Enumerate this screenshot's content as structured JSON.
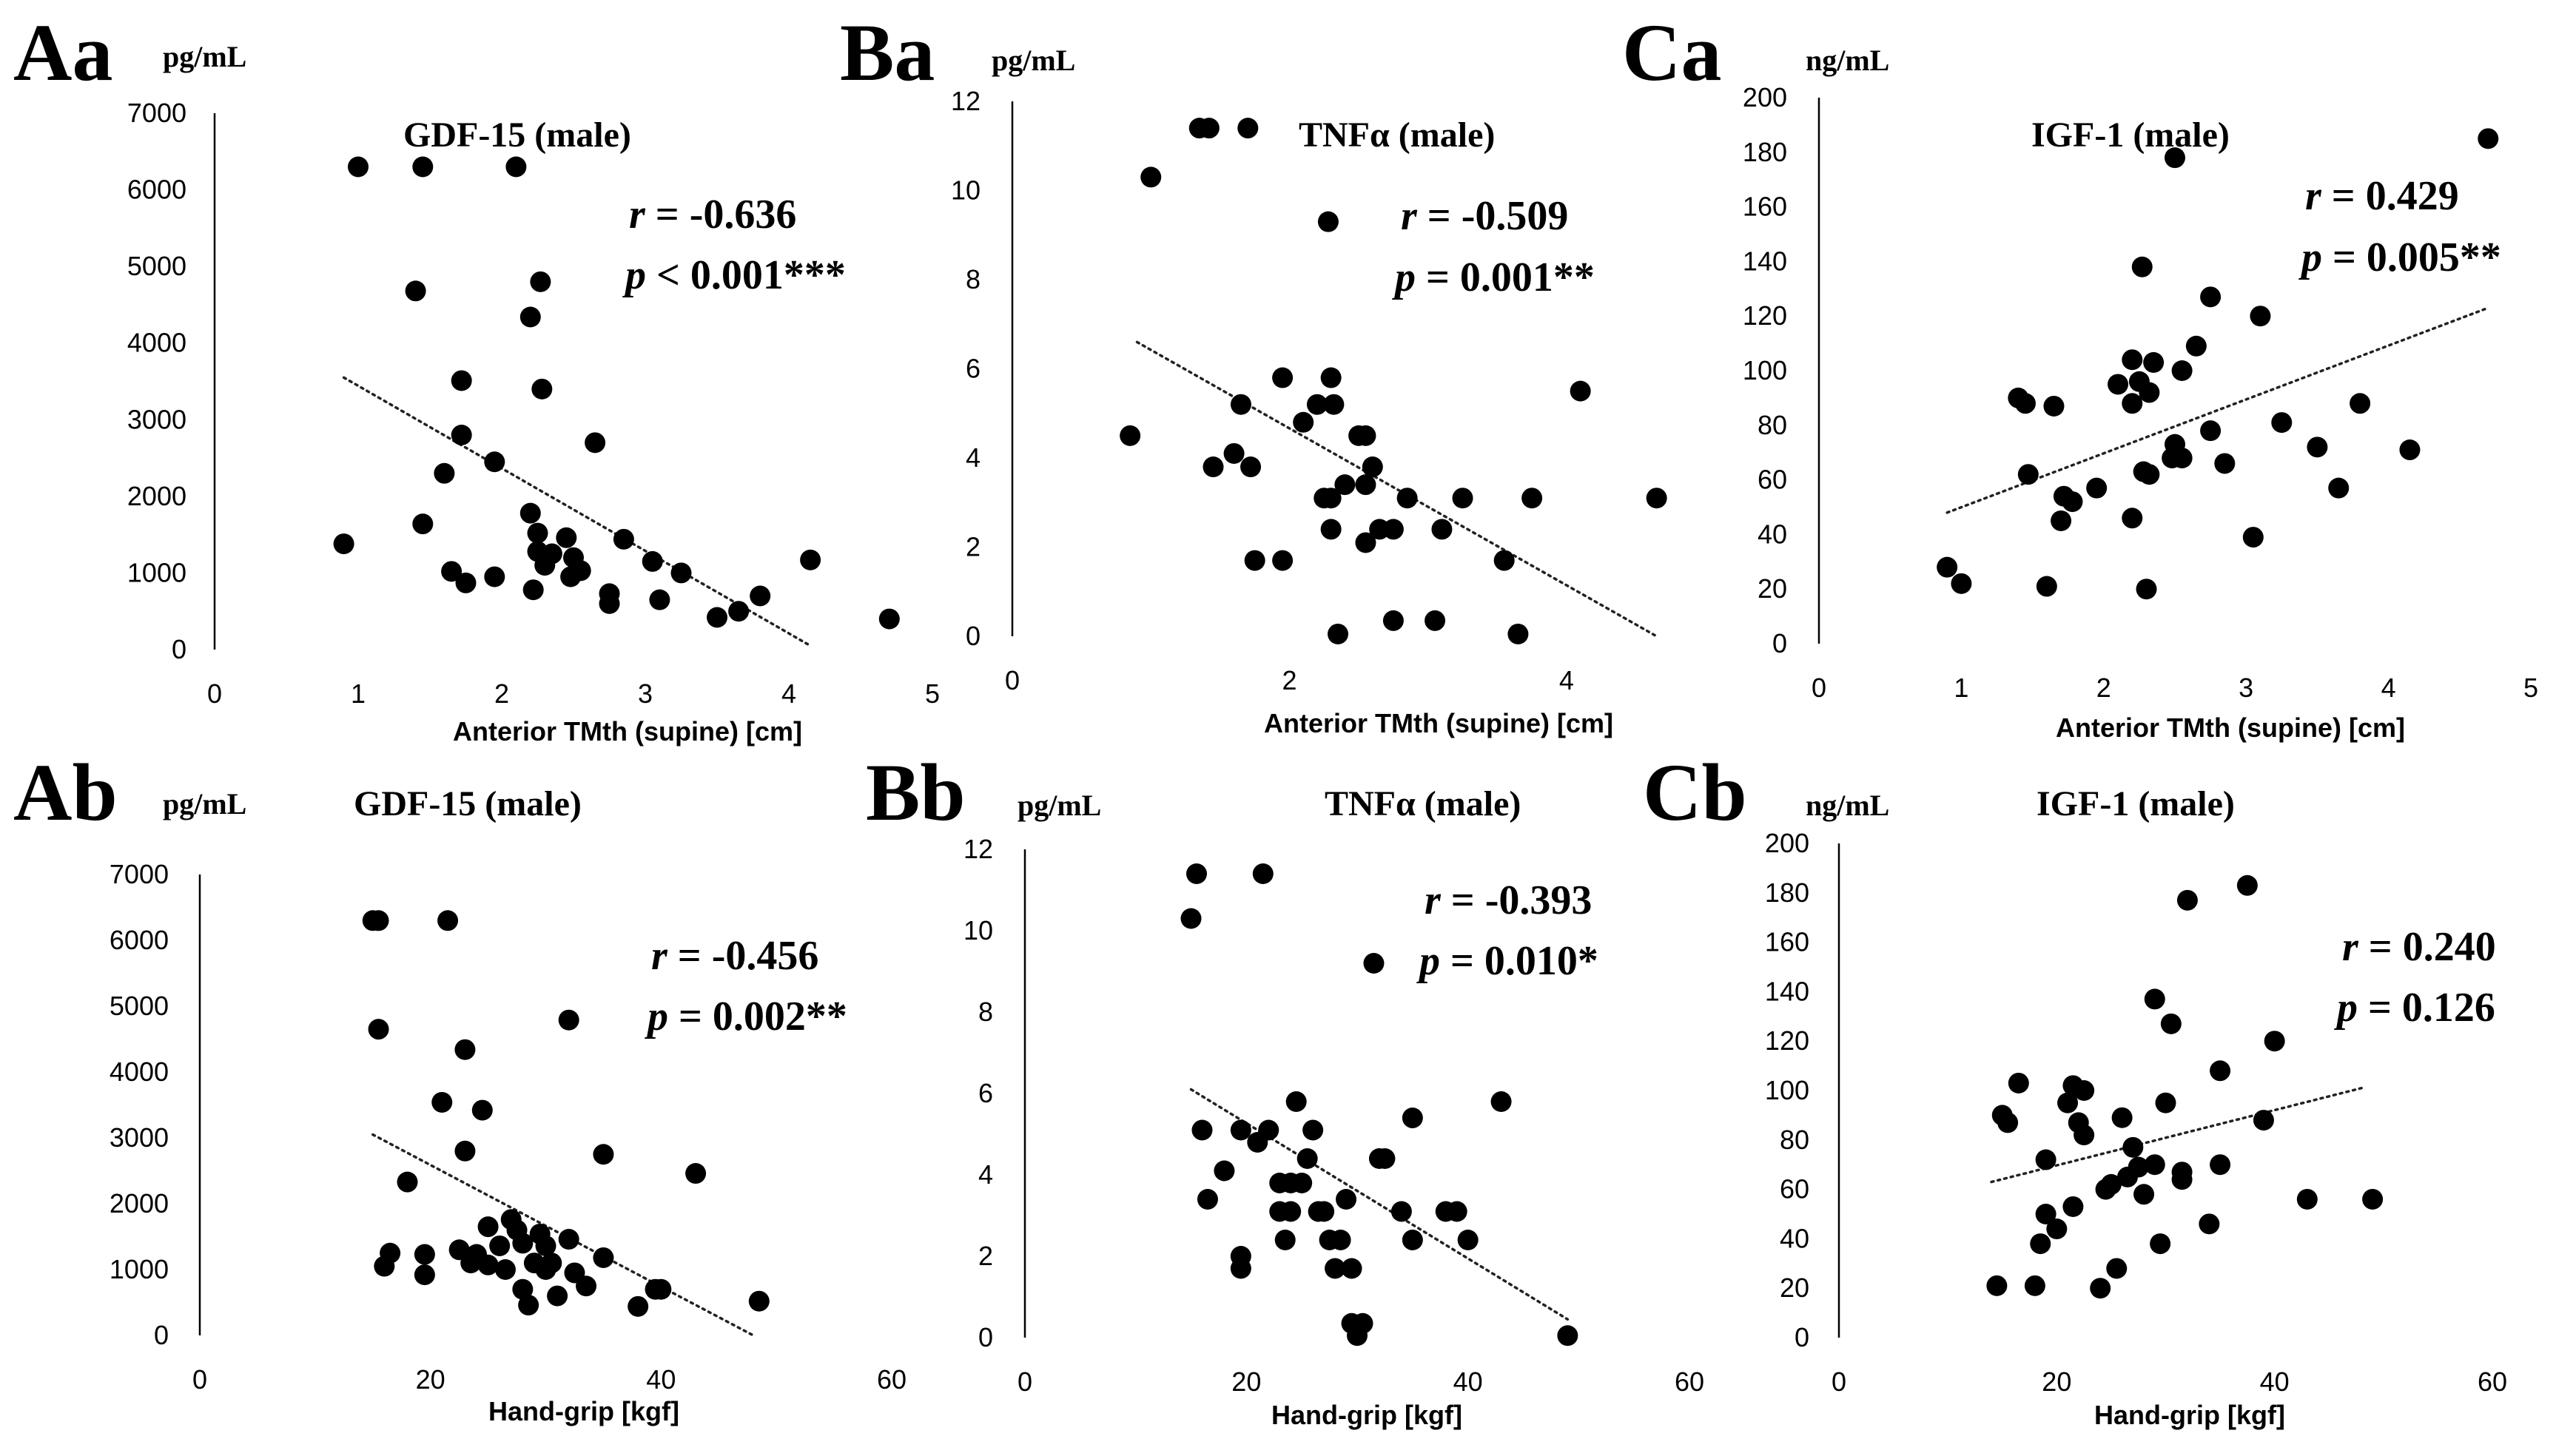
{
  "chart_data": [
    {
      "panel": "Aa",
      "type": "scatter",
      "title": "GDF-15 (male)",
      "unit": "pg/mL",
      "xlabel": "Anterior TMth (supine) [cm]",
      "xlim": [
        0,
        5
      ],
      "ylim": [
        0,
        7000
      ],
      "xticks": [
        0,
        1,
        2,
        3,
        4,
        5
      ],
      "yticks": [
        0,
        1000,
        2000,
        3000,
        4000,
        5000,
        6000,
        7000
      ],
      "stat_r": "r = -0.636",
      "stat_p": "p < 0.001***",
      "trend": [
        [
          0.9,
          3550
        ],
        [
          4.15,
          50
        ]
      ],
      "points": [
        [
          0.9,
          1380
        ],
        [
          1.0,
          6300
        ],
        [
          1.4,
          4680
        ],
        [
          1.45,
          1640
        ],
        [
          1.45,
          6300
        ],
        [
          1.6,
          2300
        ],
        [
          1.65,
          1020
        ],
        [
          1.72,
          3510
        ],
        [
          1.72,
          2800
        ],
        [
          1.75,
          870
        ],
        [
          1.95,
          2450
        ],
        [
          1.95,
          950
        ],
        [
          2.1,
          6300
        ],
        [
          2.2,
          4340
        ],
        [
          2.2,
          1780
        ],
        [
          2.22,
          780
        ],
        [
          2.25,
          1520
        ],
        [
          2.25,
          1280
        ],
        [
          2.27,
          4800
        ],
        [
          2.28,
          3400
        ],
        [
          2.3,
          1100
        ],
        [
          2.35,
          1250
        ],
        [
          2.45,
          1460
        ],
        [
          2.48,
          950
        ],
        [
          2.5,
          1200
        ],
        [
          2.55,
          1030
        ],
        [
          2.65,
          2700
        ],
        [
          2.75,
          600
        ],
        [
          2.75,
          730
        ],
        [
          2.85,
          1440
        ],
        [
          3.05,
          1150
        ],
        [
          3.1,
          650
        ],
        [
          3.25,
          1000
        ],
        [
          3.5,
          420
        ],
        [
          3.65,
          500
        ],
        [
          3.8,
          700
        ],
        [
          4.15,
          1170
        ],
        [
          4.7,
          400
        ]
      ]
    },
    {
      "panel": "Ba",
      "type": "scatter",
      "title": "TNFα (male)",
      "unit": "pg/mL",
      "xlabel": "Anterior TMth (supine)  [cm]",
      "xlim": [
        0,
        4.7
      ],
      "ylim": [
        0,
        12
      ],
      "xticks": [
        0,
        2,
        4
      ],
      "yticks": [
        0,
        2,
        4,
        6,
        8,
        10,
        12
      ],
      "stat_r": "r = -0.509",
      "stat_p": "p = 0.001**",
      "trend": [
        [
          0.9,
          6.6
        ],
        [
          4.65,
          0.0
        ]
      ],
      "points": [
        [
          0.85,
          4.5
        ],
        [
          1.0,
          10.3
        ],
        [
          1.35,
          11.4
        ],
        [
          1.42,
          11.4
        ],
        [
          1.7,
          11.4
        ],
        [
          1.45,
          3.8
        ],
        [
          1.6,
          4.1
        ],
        [
          1.65,
          5.2
        ],
        [
          1.72,
          3.8
        ],
        [
          1.75,
          1.7
        ],
        [
          1.95,
          1.7
        ],
        [
          1.95,
          5.8
        ],
        [
          2.1,
          4.8
        ],
        [
          2.2,
          5.2
        ],
        [
          2.25,
          3.1
        ],
        [
          2.28,
          9.3
        ],
        [
          2.3,
          3.1
        ],
        [
          2.3,
          2.4
        ],
        [
          2.3,
          5.8
        ],
        [
          2.32,
          5.2
        ],
        [
          2.35,
          0.05
        ],
        [
          2.4,
          3.4
        ],
        [
          2.5,
          4.5
        ],
        [
          2.55,
          4.5
        ],
        [
          2.55,
          2.1
        ],
        [
          2.55,
          3.4
        ],
        [
          2.6,
          3.8
        ],
        [
          2.65,
          2.4
        ],
        [
          2.75,
          0.35
        ],
        [
          2.75,
          2.4
        ],
        [
          2.85,
          3.1
        ],
        [
          3.05,
          0.35
        ],
        [
          3.1,
          2.4
        ],
        [
          3.25,
          3.1
        ],
        [
          3.55,
          1.7
        ],
        [
          3.65,
          0.05
        ],
        [
          3.75,
          3.1
        ],
        [
          4.1,
          5.5
        ],
        [
          4.65,
          3.1
        ]
      ]
    },
    {
      "panel": "Ca",
      "type": "scatter",
      "title": "IGF-1 (male)",
      "unit": "ng/mL",
      "xlabel": "Anterior TMth (supine) [cm]",
      "xlim": [
        0,
        5
      ],
      "ylim": [
        0,
        200
      ],
      "xticks": [
        0,
        1,
        2,
        3,
        4,
        5
      ],
      "yticks": [
        0,
        20,
        40,
        60,
        80,
        100,
        120,
        140,
        160,
        180,
        200
      ],
      "stat_r": "r = 0.429",
      "stat_p": "p = 0.005**",
      "trend": [
        [
          0.9,
          48
        ],
        [
          4.7,
          123
        ]
      ],
      "points": [
        [
          0.9,
          28
        ],
        [
          1.0,
          22
        ],
        [
          1.4,
          90
        ],
        [
          1.45,
          88
        ],
        [
          1.47,
          62
        ],
        [
          1.6,
          21
        ],
        [
          1.65,
          87
        ],
        [
          1.7,
          45
        ],
        [
          1.72,
          54
        ],
        [
          1.78,
          52
        ],
        [
          1.95,
          57
        ],
        [
          2.1,
          95
        ],
        [
          2.2,
          88
        ],
        [
          2.2,
          104
        ],
        [
          2.2,
          46
        ],
        [
          2.25,
          96
        ],
        [
          2.27,
          138
        ],
        [
          2.28,
          63
        ],
        [
          2.3,
          20
        ],
        [
          2.32,
          92
        ],
        [
          2.32,
          62
        ],
        [
          2.35,
          103
        ],
        [
          2.48,
          68
        ],
        [
          2.5,
          178
        ],
        [
          2.5,
          73
        ],
        [
          2.55,
          68
        ],
        [
          2.55,
          100
        ],
        [
          2.65,
          109
        ],
        [
          2.75,
          127
        ],
        [
          2.75,
          78
        ],
        [
          2.85,
          66
        ],
        [
          3.05,
          39
        ],
        [
          3.1,
          120
        ],
        [
          3.25,
          81
        ],
        [
          3.5,
          72
        ],
        [
          3.65,
          57
        ],
        [
          3.8,
          88
        ],
        [
          4.15,
          71
        ],
        [
          4.7,
          185
        ]
      ]
    },
    {
      "panel": "Ab",
      "type": "scatter",
      "title": "GDF-15 (male)",
      "unit": "pg/mL",
      "xlabel": "Hand-grip [kgf]",
      "xlim": [
        0,
        60
      ],
      "ylim": [
        0,
        7000
      ],
      "xticks": [
        0,
        20,
        40,
        60
      ],
      "yticks": [
        0,
        1000,
        2000,
        3000,
        4000,
        5000,
        6000,
        7000
      ],
      "stat_r": "r = -0.456",
      "stat_p": "p = 0.002**",
      "trend": [
        [
          15,
          3050
        ],
        [
          48,
          0
        ]
      ],
      "points": [
        [
          15,
          6300
        ],
        [
          15.5,
          6300
        ],
        [
          15.5,
          4650
        ],
        [
          16,
          1050
        ],
        [
          16.5,
          1250
        ],
        [
          18,
          2330
        ],
        [
          19.5,
          1230
        ],
        [
          19.5,
          920
        ],
        [
          21,
          3540
        ],
        [
          21.5,
          6300
        ],
        [
          22.5,
          1300
        ],
        [
          23,
          4340
        ],
        [
          23,
          2800
        ],
        [
          23.5,
          1100
        ],
        [
          24,
          1230
        ],
        [
          24.5,
          3420
        ],
        [
          25,
          1650
        ],
        [
          25,
          1070
        ],
        [
          26,
          1360
        ],
        [
          26.5,
          1000
        ],
        [
          27,
          1760
        ],
        [
          27.5,
          1600
        ],
        [
          28,
          700
        ],
        [
          28,
          1400
        ],
        [
          28.5,
          460
        ],
        [
          29,
          1100
        ],
        [
          29.5,
          1540
        ],
        [
          30,
          1360
        ],
        [
          30,
          1000
        ],
        [
          30.5,
          1100
        ],
        [
          31,
          600
        ],
        [
          32,
          1460
        ],
        [
          32,
          4790
        ],
        [
          32.5,
          950
        ],
        [
          33.5,
          750
        ],
        [
          35,
          2750
        ],
        [
          35,
          1180
        ],
        [
          38,
          440
        ],
        [
          39.5,
          700
        ],
        [
          40,
          700
        ],
        [
          43,
          2460
        ],
        [
          48.5,
          520
        ]
      ]
    },
    {
      "panel": "Bb",
      "type": "scatter",
      "title": "TNFα (male)",
      "unit": "pg/mL",
      "xlabel": "Hand-grip [kgf]",
      "xlim": [
        0,
        60
      ],
      "ylim": [
        0,
        12
      ],
      "xticks": [
        0,
        20,
        40,
        60
      ],
      "yticks": [
        0,
        2,
        4,
        6,
        8,
        10,
        12
      ],
      "stat_r": "r = -0.393",
      "stat_p": "p = 0.010*",
      "trend": [
        [
          15,
          6.1
        ],
        [
          49,
          0.45
        ]
      ],
      "points": [
        [
          15,
          10.3
        ],
        [
          15.5,
          11.4
        ],
        [
          16,
          5.1
        ],
        [
          16.5,
          3.4
        ],
        [
          18,
          4.1
        ],
        [
          19.5,
          5.1
        ],
        [
          19.5,
          2.0
        ],
        [
          19.5,
          1.7
        ],
        [
          21,
          4.8
        ],
        [
          21.5,
          11.4
        ],
        [
          22,
          5.1
        ],
        [
          23,
          3.8
        ],
        [
          23,
          3.1
        ],
        [
          23.5,
          2.4
        ],
        [
          24,
          3.1
        ],
        [
          24,
          3.8
        ],
        [
          24.5,
          5.8
        ],
        [
          25,
          3.8
        ],
        [
          25.5,
          4.4
        ],
        [
          26,
          5.1
        ],
        [
          26.5,
          3.1
        ],
        [
          27,
          3.1
        ],
        [
          27.5,
          2.4
        ],
        [
          28,
          1.7
        ],
        [
          28.5,
          2.4
        ],
        [
          29,
          3.4
        ],
        [
          29.5,
          0.35
        ],
        [
          29.5,
          1.7
        ],
        [
          30,
          0.05
        ],
        [
          30.5,
          0.35
        ],
        [
          31.5,
          9.2
        ],
        [
          32,
          4.4
        ],
        [
          32.5,
          4.4
        ],
        [
          34,
          3.1
        ],
        [
          35,
          5.4
        ],
        [
          35,
          2.4
        ],
        [
          38,
          3.1
        ],
        [
          39,
          3.1
        ],
        [
          40,
          2.4
        ],
        [
          43,
          5.8
        ],
        [
          49,
          0.05
        ]
      ]
    },
    {
      "panel": "Cb",
      "type": "scatter",
      "title": "IGF-1 (male)",
      "unit": "ng/mL",
      "xlabel": "Hand-grip [kgf]",
      "xlim": [
        0,
        60
      ],
      "ylim": [
        0,
        200
      ],
      "xticks": [
        0,
        20,
        40,
        60
      ],
      "yticks": [
        0,
        20,
        40,
        60,
        80,
        100,
        120,
        140,
        160,
        180,
        200
      ],
      "stat_r": "r = 0.240",
      "stat_p": "p = 0.126",
      "trend": [
        [
          14,
          63
        ],
        [
          48,
          101
        ]
      ],
      "points": [
        [
          14.5,
          21
        ],
        [
          15,
          90
        ],
        [
          15.5,
          87
        ],
        [
          16.5,
          103
        ],
        [
          18,
          21
        ],
        [
          18.5,
          38
        ],
        [
          19,
          50
        ],
        [
          19,
          72
        ],
        [
          20,
          44
        ],
        [
          21,
          95
        ],
        [
          21.5,
          102
        ],
        [
          21.5,
          53
        ],
        [
          22,
          87
        ],
        [
          22.5,
          100
        ],
        [
          22.5,
          82
        ],
        [
          24,
          20
        ],
        [
          24.5,
          60
        ],
        [
          25,
          62
        ],
        [
          25.5,
          28
        ],
        [
          26,
          89
        ],
        [
          26.5,
          65
        ],
        [
          27,
          77
        ],
        [
          27.5,
          69
        ],
        [
          28,
          58
        ],
        [
          29,
          137
        ],
        [
          29,
          70
        ],
        [
          29.5,
          38
        ],
        [
          30,
          95
        ],
        [
          30.5,
          127
        ],
        [
          31.5,
          67
        ],
        [
          31.5,
          64
        ],
        [
          32,
          177
        ],
        [
          34,
          46
        ],
        [
          35,
          70
        ],
        [
          35,
          108
        ],
        [
          37.5,
          183
        ],
        [
          39,
          88
        ],
        [
          40,
          120
        ],
        [
          43,
          56
        ],
        [
          49,
          56
        ]
      ]
    }
  ]
}
